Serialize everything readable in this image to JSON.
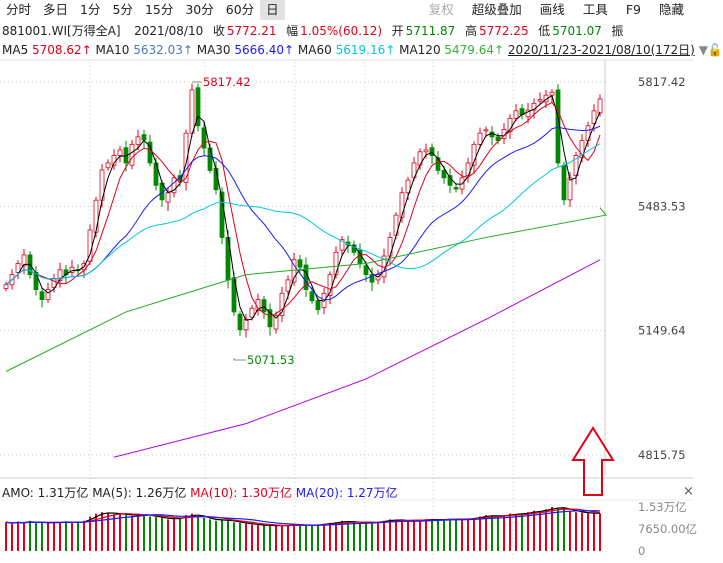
{
  "toolbar": {
    "items": [
      "分时",
      "多日",
      "1分",
      "5分",
      "15分",
      "30分",
      "60分",
      "日"
    ],
    "active": "日",
    "right_items": [
      "复权",
      "超级叠加",
      "画线",
      "工具",
      "F9",
      "隐藏"
    ]
  },
  "info": {
    "code": "881001.WI[万得全A]",
    "date": "2021/08/10",
    "close_label": "收",
    "close": "5772.21",
    "change_label": "幅",
    "change": "1.05%(60.12)",
    "open_label": "开",
    "open": "5711.87",
    "high_label": "高",
    "high": "5772.25",
    "low_label": "低",
    "low": "5701.07",
    "amp_label": "振"
  },
  "ma_row": {
    "ma5_label": "MA5",
    "ma5": "5708.62↑",
    "ma10_label": "MA10",
    "ma10": "5632.03↑",
    "ma30_label": "MA30",
    "ma30": "5666.40↑",
    "ma60_label": "MA60",
    "ma60": "5619.16↑",
    "ma120_label": "MA120",
    "ma120": "5479.64↑",
    "range": "2020/11/23-2021/08/10(172日)"
  },
  "volume_header": {
    "amo": "AMO: 1.31万亿",
    "ma5": "MA(5): 1.26万亿",
    "ma10": "MA(10): 1.30万亿",
    "ma20": "MA(20): 1.27万亿"
  },
  "colors": {
    "up": "#e0001a",
    "down": "#008800",
    "ma5": "#000000",
    "ma10": "#e0001a",
    "ma30": "#1a1aff",
    "ma60": "#00c8e0",
    "ma120": "#22aa22",
    "ma250": "#b000e0"
  },
  "chart_data": {
    "type": "candlestick",
    "price_ticks": [
      "5817.42",
      "5483.53",
      "5149.64",
      "4815.75"
    ],
    "ylim": [
      4815.75,
      5817.42
    ],
    "volume_ticks": [
      "1.53万亿",
      "7650.00亿",
      "0"
    ],
    "annotations": {
      "high": "5817.42",
      "low": "5071.53"
    },
    "closes": [
      5273,
      5300,
      5330,
      5353,
      5300,
      5260,
      5233,
      5260,
      5290,
      5313,
      5300,
      5320,
      5313,
      5330,
      5420,
      5500,
      5581,
      5600,
      5620,
      5635,
      5600,
      5650,
      5670,
      5662,
      5600,
      5540,
      5501,
      5520,
      5560,
      5554,
      5680,
      5796,
      5700,
      5640,
      5580,
      5528,
      5400,
      5286,
      5200,
      5152,
      5180,
      5210,
      5233,
      5200,
      5160,
      5190,
      5250,
      5286,
      5340,
      5320,
      5260,
      5230,
      5206,
      5250,
      5300,
      5360,
      5394,
      5380,
      5360,
      5330,
      5300,
      5280,
      5300,
      5350,
      5400,
      5460,
      5520,
      5554,
      5600,
      5630,
      5635,
      5620,
      5580,
      5560,
      5540,
      5530,
      5560,
      5600,
      5650,
      5680,
      5689,
      5670,
      5660,
      5690,
      5720,
      5740,
      5730,
      5742,
      5760,
      5770,
      5782,
      5790,
      5600,
      5501,
      5560,
      5620,
      5660,
      5700,
      5740,
      5772
    ],
    "ma120": [
      [
        0,
        5040
      ],
      [
        20,
        5200
      ],
      [
        40,
        5300
      ],
      [
        60,
        5330
      ],
      [
        80,
        5400
      ],
      [
        100,
        5460
      ],
      [
        99,
        5480
      ]
    ],
    "ma250": [
      [
        18,
        4810
      ],
      [
        40,
        4900
      ],
      [
        60,
        5020
      ],
      [
        80,
        5180
      ],
      [
        99,
        5340
      ]
    ],
    "volume": [
      1.0,
      0.95,
      1.02,
      0.98,
      1.05,
      0.97,
      1.0,
      0.96,
      1.01,
      0.99,
      1.03,
      0.98,
      1.0,
      1.05,
      1.2,
      1.3,
      1.35,
      1.32,
      1.28,
      1.3,
      1.25,
      1.22,
      1.3,
      1.25,
      1.2,
      1.18,
      1.15,
      1.1,
      1.12,
      1.15,
      1.25,
      1.3,
      1.2,
      1.15,
      1.1,
      1.05,
      1.1,
      1.05,
      1.0,
      0.98,
      0.95,
      0.92,
      0.9,
      0.88,
      0.9,
      0.87,
      0.88,
      0.9,
      0.92,
      0.9,
      0.88,
      0.9,
      0.92,
      0.95,
      0.98,
      1.0,
      1.05,
      1.02,
      1.0,
      0.98,
      0.97,
      1.0,
      1.02,
      1.05,
      1.1,
      1.08,
      1.06,
      1.05,
      1.07,
      1.08,
      1.1,
      1.09,
      1.08,
      1.1,
      1.12,
      1.1,
      1.11,
      1.12,
      1.15,
      1.2,
      1.25,
      1.22,
      1.2,
      1.25,
      1.3,
      1.28,
      1.3,
      1.35,
      1.4,
      1.38,
      1.45,
      1.53,
      1.5,
      1.48,
      1.4,
      1.35,
      1.33,
      1.32,
      1.3,
      1.31
    ]
  }
}
